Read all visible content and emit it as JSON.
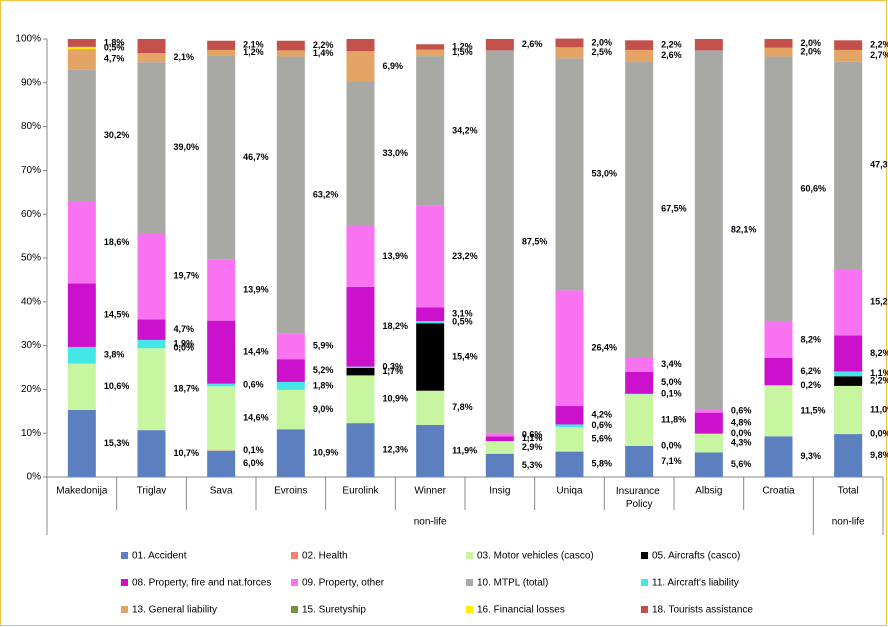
{
  "chart_data": {
    "type": "stacked_bar",
    "categories": [
      "Makedonija",
      "Triglav",
      "Sava",
      "Evroins",
      "Eurolink",
      "Winner",
      "Insig",
      "Uniqa",
      "Insurance Policy",
      "Albsig",
      "Croatia",
      "Total"
    ],
    "group_labels": [
      "non-life",
      "non-life"
    ],
    "ylim": [
      0,
      100
    ],
    "yticks": [
      {
        "value": 0,
        "label": "0%"
      },
      {
        "value": 10,
        "label": "10%"
      },
      {
        "value": 20,
        "label": "20%"
      },
      {
        "value": 30,
        "label": "30%"
      },
      {
        "value": 40,
        "label": "40%"
      },
      {
        "value": 50,
        "label": "50%"
      },
      {
        "value": 60,
        "label": "60%"
      },
      {
        "value": 70,
        "label": "70%"
      },
      {
        "value": 80,
        "label": "80%"
      },
      {
        "value": 90,
        "label": "90%"
      },
      {
        "value": 100,
        "label": "100%"
      }
    ],
    "grid": false,
    "series": [
      {
        "name": "01. Accident",
        "color": "#5b7fbf",
        "values": [
          15.3,
          10.7,
          6.0,
          10.9,
          12.3,
          11.9,
          5.3,
          5.8,
          7.1,
          5.6,
          9.3,
          9.8
        ],
        "value_labels": [
          "15,3%",
          "10,7%",
          "6,0%",
          "10,9%",
          "12,3%",
          "11,9%",
          "5,3%",
          "5,8%",
          "7,1%",
          "5,6%",
          "9,3%",
          "9,8%"
        ]
      },
      {
        "name": "02. Health",
        "color": "#f4836f",
        "values": [
          null,
          null,
          0.1,
          null,
          null,
          null,
          null,
          null,
          0.0,
          null,
          null,
          0.0
        ],
        "value_labels": [
          null,
          null,
          "0,1%",
          null,
          null,
          null,
          null,
          null,
          "0,0%",
          null,
          null,
          "0,0%"
        ]
      },
      {
        "name": "03. Motor vehicles (casco)",
        "color": "#c8f5a0",
        "values": [
          10.6,
          18.7,
          14.6,
          9.0,
          10.9,
          7.8,
          2.9,
          5.6,
          11.8,
          4.3,
          11.5,
          11.0
        ],
        "value_labels": [
          "10,6%",
          "18,7%",
          "14,6%",
          "9,0%",
          "10,9%",
          "7,8%",
          "2,9%",
          "5,6%",
          "11,8%",
          "4,3%",
          "11,5%",
          "11,0%"
        ]
      },
      {
        "name": "05. Aircrafts (casco)",
        "color": "#000000",
        "values": [
          null,
          0.0,
          null,
          null,
          1.7,
          15.4,
          null,
          null,
          null,
          0.0,
          null,
          2.2
        ],
        "value_labels": [
          null,
          "0,0%",
          null,
          null,
          "1,7%",
          "15,4%",
          null,
          null,
          null,
          "0,0%",
          null,
          "2,2%"
        ]
      },
      {
        "name": "08. Property, fire and nat.forces",
        "color": "#cc11cc",
        "values": [
          14.5,
          4.7,
          14.4,
          5.2,
          18.2,
          3.1,
          1.1,
          4.2,
          5.0,
          4.8,
          6.2,
          8.2
        ],
        "value_labels": [
          "14,5%",
          "4,7%",
          "14,4%",
          "5,2%",
          "18,2%",
          "3,1%",
          "1,1%",
          "4,2%",
          "5,0%",
          "4,8%",
          "6,2%",
          "8,2%"
        ]
      },
      {
        "name": "09. Property, other",
        "color": "#f872f2",
        "values": [
          18.6,
          19.7,
          13.9,
          5.9,
          13.9,
          23.2,
          0.6,
          26.4,
          3.4,
          0.6,
          8.2,
          15.2
        ],
        "value_labels": [
          "18,6%",
          "19,7%",
          "13,9%",
          "5,9%",
          "13,9%",
          "23,2%",
          "0,6%",
          "26,4%",
          "3,4%",
          "0,6%",
          "8,2%",
          "15,2%"
        ]
      },
      {
        "name": "10. MTPL (total)",
        "color": "#a8a8a4",
        "values": [
          30.2,
          39.0,
          46.7,
          63.2,
          33.0,
          34.2,
          87.5,
          53.0,
          67.5,
          82.1,
          60.6,
          47.3
        ],
        "value_labels": [
          "30,2%",
          "39,0%",
          "46,7%",
          "63,2%",
          "33,0%",
          "34,2%",
          "87,5%",
          "53,0%",
          "67,5%",
          "82,1%",
          "60,6%",
          "47,3%"
        ]
      },
      {
        "name": "11. Aircraft's liability",
        "color": "#44e6e8",
        "values": [
          3.8,
          1.9,
          0.6,
          1.8,
          0.3,
          0.5,
          null,
          0.6,
          0.1,
          null,
          0.2,
          1.1
        ],
        "value_labels": [
          "3,8%",
          "1,9%",
          "0,6%",
          "1,8%",
          "0,3%",
          "0,5%",
          null,
          "0,6%",
          "0,1%",
          null,
          "0,2%",
          "1,1%"
        ]
      },
      {
        "name": "13. General liability",
        "color": "#e3a466",
        "values": [
          4.7,
          2.1,
          1.2,
          1.4,
          6.9,
          1.5,
          null,
          2.5,
          2.6,
          null,
          2.0,
          2.7
        ],
        "value_labels": [
          "4,7%",
          "2,1%",
          "1,2%",
          "1,4%",
          "6,9%",
          "1,5%",
          null,
          "2,5%",
          "2,6%",
          null,
          "2,0%",
          "2,7%"
        ]
      },
      {
        "name": "15. Suretyship",
        "color": "#77933c",
        "values": [
          null,
          null,
          null,
          null,
          null,
          null,
          null,
          null,
          null,
          null,
          null,
          null
        ]
      },
      {
        "name": "16. Financial losses",
        "color": "#ffee00",
        "values": [
          0.5,
          null,
          null,
          null,
          null,
          null,
          null,
          null,
          null,
          null,
          null,
          null
        ],
        "value_labels": [
          "0,5%",
          null,
          null,
          null,
          null,
          null,
          null,
          null,
          null,
          null,
          null,
          null
        ]
      },
      {
        "name": "18. Tourists assistance",
        "color": "#c4504c",
        "values": [
          1.8,
          3.2,
          2.1,
          2.2,
          2.8,
          1.2,
          2.6,
          2.0,
          2.2,
          2.6,
          2.0,
          2.2
        ],
        "value_labels": [
          "1,8%",
          null,
          "2,1%",
          "2,2%",
          null,
          "1,2%",
          "2,6%",
          "2,0%",
          "2,2%",
          null,
          "2,0%",
          "2,2%"
        ]
      }
    ]
  }
}
